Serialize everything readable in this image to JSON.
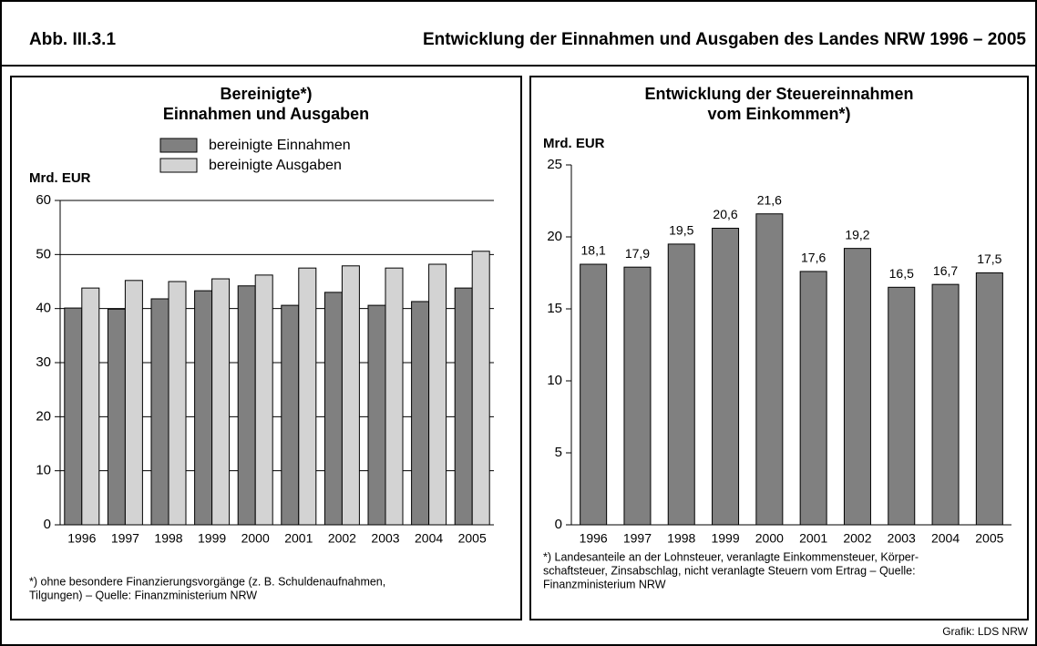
{
  "header": {
    "label": "Abb. III.3.1",
    "title": "Entwicklung der Einnahmen und Ausgaben des Landes NRW 1996 – 2005"
  },
  "credit": "Grafik: LDS NRW",
  "chart_data": [
    {
      "type": "bar",
      "title": [
        "Bereinigte*)",
        "Einnahmen und Ausgaben"
      ],
      "y_label": "Mrd. EUR",
      "categories": [
        "1996",
        "1997",
        "1998",
        "1999",
        "2000",
        "2001",
        "2002",
        "2003",
        "2004",
        "2005"
      ],
      "series": [
        {
          "name": "bereinigte Einnahmen",
          "color": "#808080",
          "values": [
            40.1,
            39.9,
            41.8,
            43.3,
            44.2,
            40.6,
            43.0,
            40.6,
            41.3,
            43.8
          ]
        },
        {
          "name": "bereinigte Ausgaben",
          "color": "#d3d3d3",
          "values": [
            43.8,
            45.2,
            45.0,
            45.5,
            46.2,
            47.5,
            47.9,
            47.5,
            48.2,
            50.6
          ]
        }
      ],
      "ylim": [
        0,
        60
      ],
      "yticks": [
        0,
        10,
        20,
        30,
        40,
        50,
        60
      ],
      "grid": true,
      "footnote": [
        "*) ohne besondere Finanzierungsvorgänge (z. B. Schuldenaufnahmen,",
        "Tilgungen) – Quelle: Finanzministerium NRW"
      ]
    },
    {
      "type": "bar",
      "title": [
        "Entwicklung der Steuereinnahmen",
        "vom Einkommen*)"
      ],
      "y_label": "Mrd. EUR",
      "categories": [
        "1996",
        "1997",
        "1998",
        "1999",
        "2000",
        "2001",
        "2002",
        "2003",
        "2004",
        "2005"
      ],
      "values": [
        18.1,
        17.9,
        19.5,
        20.6,
        21.6,
        17.6,
        19.2,
        16.5,
        16.7,
        17.5
      ],
      "value_labels": [
        "18,1",
        "17,9",
        "19,5",
        "20,6",
        "21,6",
        "17,6",
        "19,2",
        "16,5",
        "16,7",
        "17,5"
      ],
      "color": "#808080",
      "ylim": [
        0,
        25
      ],
      "yticks": [
        0,
        5,
        10,
        15,
        20,
        25
      ],
      "grid": false,
      "footnote": [
        "*) Landesanteile an der Lohnsteuer, veranlagte Einkommensteuer, Körper-",
        "schaftsteuer, Zinsabschlag, nicht veranlagte Steuern vom Ertrag – Quelle:",
        "Finanzministerium NRW"
      ]
    }
  ]
}
